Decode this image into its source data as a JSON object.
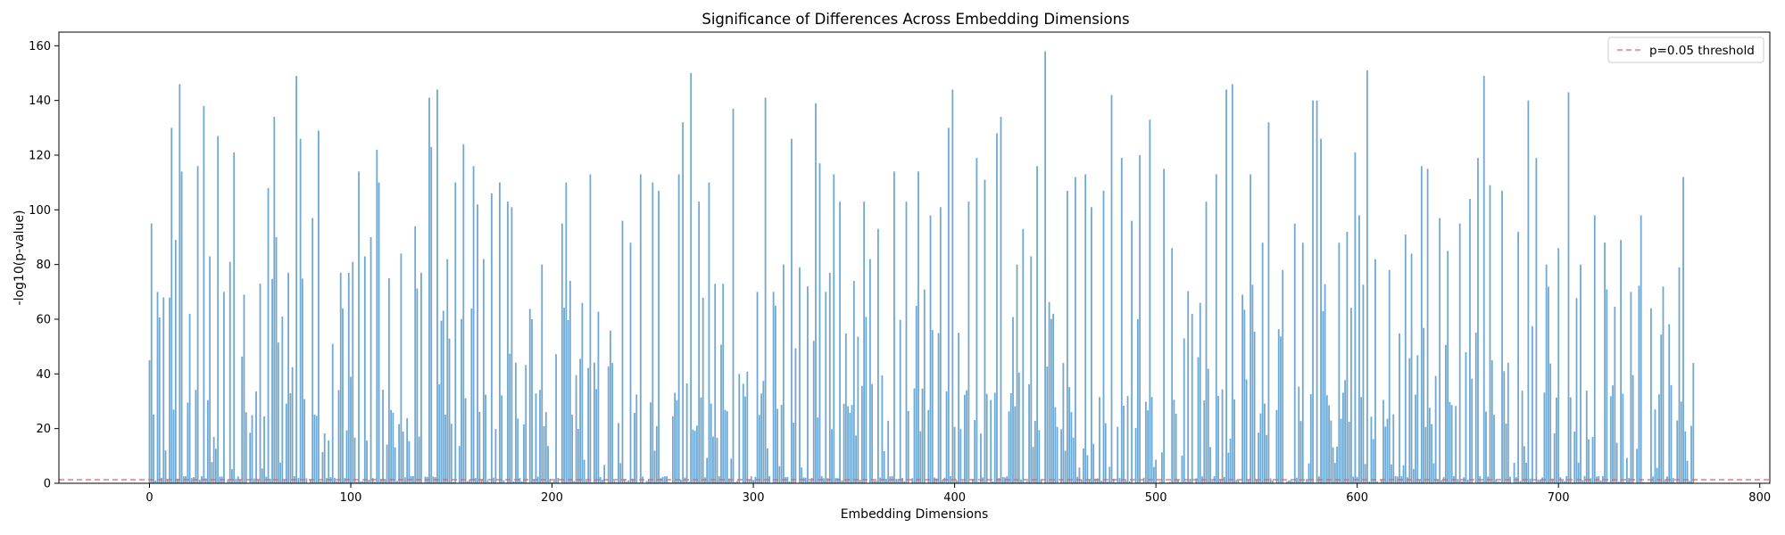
{
  "chart_data": {
    "type": "bar",
    "title": "Significance of Differences Across Embedding Dimensions",
    "xlabel": "Embedding Dimensions",
    "ylabel": "-log10(p-value)",
    "xlim": [
      -45,
      805
    ],
    "ylim": [
      0,
      165
    ],
    "xticks": [
      "0",
      "100",
      "200",
      "300",
      "400",
      "500",
      "600",
      "700",
      "800"
    ],
    "yticks": [
      "0",
      "20",
      "40",
      "60",
      "80",
      "100",
      "120",
      "140",
      "160"
    ],
    "bar_color": "#6fa9d2",
    "n_dimensions": 768,
    "peaks": [
      [
        0,
        45
      ],
      [
        1,
        95
      ],
      [
        4,
        70
      ],
      [
        7,
        68
      ],
      [
        11,
        130
      ],
      [
        13,
        89
      ],
      [
        15,
        146
      ],
      [
        16,
        114
      ],
      [
        20,
        62
      ],
      [
        24,
        116
      ],
      [
        27,
        138
      ],
      [
        30,
        83
      ],
      [
        34,
        127
      ],
      [
        37,
        70
      ],
      [
        40,
        81
      ],
      [
        42,
        121
      ],
      [
        47,
        69
      ],
      [
        55,
        73
      ],
      [
        59,
        108
      ],
      [
        62,
        134
      ],
      [
        63,
        90
      ],
      [
        66,
        61
      ],
      [
        69,
        77
      ],
      [
        73,
        149
      ],
      [
        75,
        126
      ],
      [
        81,
        97
      ],
      [
        84,
        129
      ],
      [
        91,
        51
      ],
      [
        95,
        77
      ],
      [
        99,
        77
      ],
      [
        101,
        81
      ],
      [
        104,
        114
      ],
      [
        107,
        83
      ],
      [
        110,
        90
      ],
      [
        113,
        122
      ],
      [
        114,
        110
      ],
      [
        119,
        75
      ],
      [
        125,
        84
      ],
      [
        132,
        94
      ],
      [
        135,
        77
      ],
      [
        139,
        141
      ],
      [
        140,
        123
      ],
      [
        143,
        144
      ],
      [
        148,
        82
      ],
      [
        152,
        110
      ],
      [
        156,
        124
      ],
      [
        161,
        116
      ],
      [
        163,
        102
      ],
      [
        166,
        82
      ],
      [
        170,
        106
      ],
      [
        174,
        110
      ],
      [
        178,
        103
      ],
      [
        180,
        101
      ],
      [
        190,
        60
      ],
      [
        195,
        80
      ],
      [
        205,
        95
      ],
      [
        207,
        110
      ],
      [
        215,
        66
      ],
      [
        219,
        113
      ],
      [
        230,
        44
      ],
      [
        235,
        96
      ],
      [
        239,
        88
      ],
      [
        244,
        113
      ],
      [
        250,
        110
      ],
      [
        253,
        107
      ],
      [
        263,
        113
      ],
      [
        265,
        132
      ],
      [
        269,
        150
      ],
      [
        273,
        103
      ],
      [
        278,
        110
      ],
      [
        290,
        137
      ],
      [
        293,
        40
      ],
      [
        302,
        70
      ],
      [
        306,
        141
      ],
      [
        310,
        70
      ],
      [
        315,
        80
      ],
      [
        319,
        126
      ],
      [
        323,
        79
      ],
      [
        327,
        72
      ],
      [
        331,
        139
      ],
      [
        333,
        117
      ],
      [
        338,
        77
      ],
      [
        340,
        113
      ],
      [
        343,
        103
      ],
      [
        350,
        74
      ],
      [
        355,
        103
      ],
      [
        358,
        82
      ],
      [
        362,
        93
      ],
      [
        370,
        114
      ],
      [
        376,
        103
      ],
      [
        382,
        114
      ],
      [
        388,
        98
      ],
      [
        393,
        101
      ],
      [
        397,
        130
      ],
      [
        399,
        144
      ],
      [
        407,
        103
      ],
      [
        411,
        119
      ],
      [
        415,
        111
      ],
      [
        421,
        128
      ],
      [
        423,
        134
      ],
      [
        431,
        80
      ],
      [
        434,
        93
      ],
      [
        438,
        83
      ],
      [
        441,
        116
      ],
      [
        445,
        158
      ],
      [
        449,
        62
      ],
      [
        454,
        44
      ],
      [
        456,
        107
      ],
      [
        460,
        112
      ],
      [
        465,
        113
      ],
      [
        468,
        101
      ],
      [
        474,
        107
      ],
      [
        478,
        142
      ],
      [
        483,
        119
      ],
      [
        488,
        96
      ],
      [
        492,
        120
      ],
      [
        497,
        133
      ],
      [
        504,
        115
      ],
      [
        508,
        86
      ],
      [
        514,
        53
      ],
      [
        518,
        62
      ],
      [
        522,
        66
      ],
      [
        525,
        103
      ],
      [
        530,
        113
      ],
      [
        535,
        144
      ],
      [
        538,
        146
      ],
      [
        543,
        69
      ],
      [
        547,
        113
      ],
      [
        553,
        88
      ],
      [
        556,
        132
      ],
      [
        563,
        78
      ],
      [
        569,
        95
      ],
      [
        573,
        88
      ],
      [
        578,
        140
      ],
      [
        580,
        140
      ],
      [
        582,
        126
      ],
      [
        591,
        88
      ],
      [
        595,
        92
      ],
      [
        599,
        121
      ],
      [
        601,
        98
      ],
      [
        605,
        151
      ],
      [
        609,
        82
      ],
      [
        616,
        78
      ],
      [
        624,
        91
      ],
      [
        627,
        84
      ],
      [
        632,
        116
      ],
      [
        635,
        115
      ],
      [
        641,
        97
      ],
      [
        645,
        85
      ],
      [
        651,
        95
      ],
      [
        656,
        104
      ],
      [
        660,
        119
      ],
      [
        663,
        149
      ],
      [
        666,
        109
      ],
      [
        672,
        107
      ],
      [
        680,
        92
      ],
      [
        685,
        140
      ],
      [
        689,
        119
      ],
      [
        694,
        80
      ],
      [
        700,
        86
      ],
      [
        705,
        143
      ],
      [
        711,
        80
      ],
      [
        718,
        98
      ],
      [
        723,
        88
      ],
      [
        731,
        89
      ],
      [
        736,
        70
      ],
      [
        741,
        98
      ],
      [
        746,
        64
      ],
      [
        752,
        72
      ],
      [
        760,
        79
      ],
      [
        762,
        112
      ],
      [
        767,
        44
      ]
    ],
    "threshold": {
      "value": 1.3,
      "color": "#e8605c",
      "label": "p=0.05 threshold"
    },
    "legend": {
      "position": "top-right",
      "entries": [
        "p=0.05 threshold"
      ]
    },
    "grid": false
  }
}
